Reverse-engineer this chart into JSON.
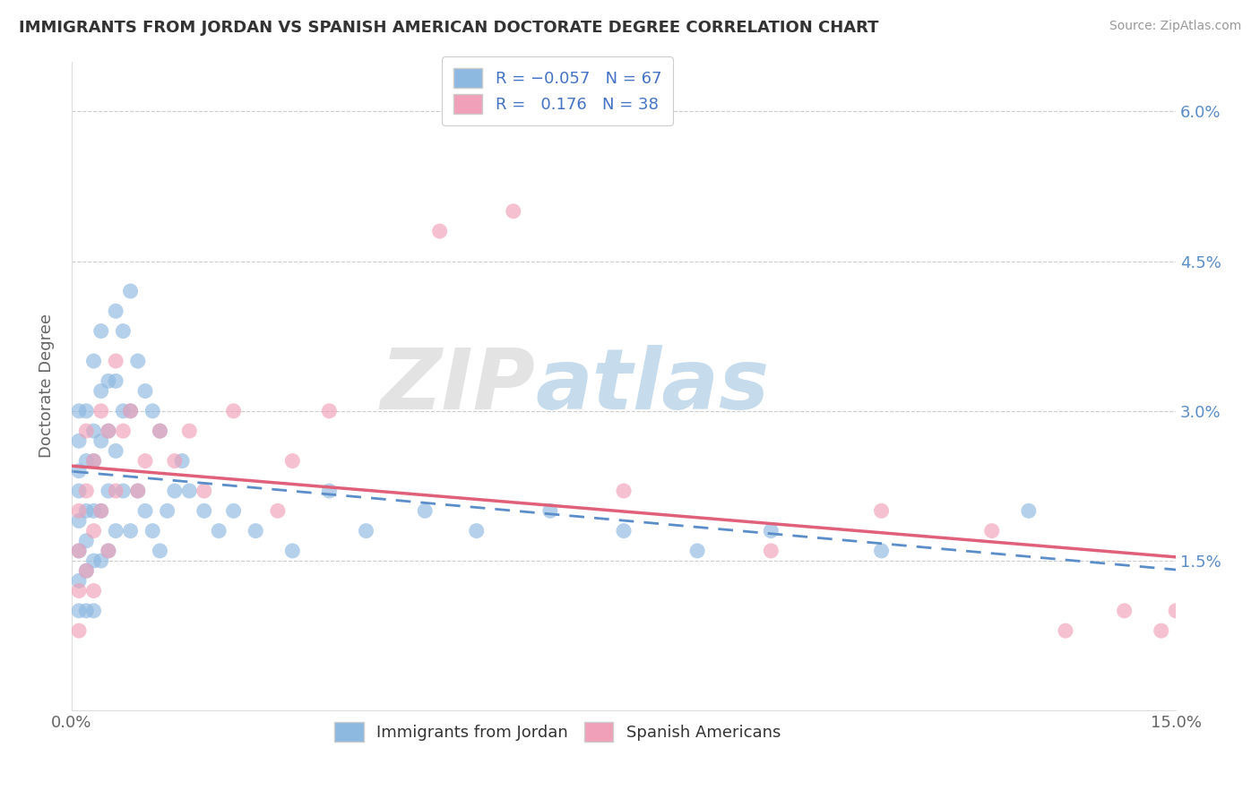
{
  "title": "IMMIGRANTS FROM JORDAN VS SPANISH AMERICAN DOCTORATE DEGREE CORRELATION CHART",
  "source": "Source: ZipAtlas.com",
  "ylabel": "Doctorate Degree",
  "xlim": [
    0.0,
    0.15
  ],
  "ylim": [
    0.0,
    0.065
  ],
  "blue_color": "#8DB8E0",
  "pink_color": "#F0A0B8",
  "blue_line_color": "#5B8DC8",
  "pink_line_color": "#E0607A",
  "watermark_zip": "ZIP",
  "watermark_atlas": "atlas",
  "background_color": "#FFFFFF",
  "grid_color": "#CCCCCC",
  "blue_scatter_x": [
    0.001,
    0.001,
    0.001,
    0.001,
    0.001,
    0.001,
    0.001,
    0.001,
    0.002,
    0.002,
    0.002,
    0.002,
    0.002,
    0.002,
    0.003,
    0.003,
    0.003,
    0.003,
    0.003,
    0.003,
    0.004,
    0.004,
    0.004,
    0.004,
    0.004,
    0.005,
    0.005,
    0.005,
    0.005,
    0.006,
    0.006,
    0.006,
    0.006,
    0.007,
    0.007,
    0.007,
    0.008,
    0.008,
    0.008,
    0.009,
    0.009,
    0.01,
    0.01,
    0.011,
    0.011,
    0.012,
    0.012,
    0.013,
    0.014,
    0.015,
    0.016,
    0.018,
    0.02,
    0.022,
    0.025,
    0.03,
    0.035,
    0.04,
    0.048,
    0.055,
    0.065,
    0.075,
    0.085,
    0.095,
    0.11,
    0.13
  ],
  "blue_scatter_y": [
    0.024,
    0.027,
    0.022,
    0.03,
    0.019,
    0.016,
    0.013,
    0.01,
    0.03,
    0.025,
    0.02,
    0.017,
    0.014,
    0.01,
    0.035,
    0.028,
    0.025,
    0.02,
    0.015,
    0.01,
    0.038,
    0.032,
    0.027,
    0.02,
    0.015,
    0.033,
    0.028,
    0.022,
    0.016,
    0.04,
    0.033,
    0.026,
    0.018,
    0.038,
    0.03,
    0.022,
    0.042,
    0.03,
    0.018,
    0.035,
    0.022,
    0.032,
    0.02,
    0.03,
    0.018,
    0.028,
    0.016,
    0.02,
    0.022,
    0.025,
    0.022,
    0.02,
    0.018,
    0.02,
    0.018,
    0.016,
    0.022,
    0.018,
    0.02,
    0.018,
    0.02,
    0.018,
    0.016,
    0.018,
    0.016,
    0.02
  ],
  "pink_scatter_x": [
    0.001,
    0.001,
    0.001,
    0.001,
    0.002,
    0.002,
    0.002,
    0.003,
    0.003,
    0.003,
    0.004,
    0.004,
    0.005,
    0.005,
    0.006,
    0.006,
    0.007,
    0.008,
    0.009,
    0.01,
    0.012,
    0.014,
    0.016,
    0.018,
    0.022,
    0.028,
    0.03,
    0.035,
    0.05,
    0.06,
    0.075,
    0.095,
    0.11,
    0.125,
    0.135,
    0.143,
    0.148,
    0.15
  ],
  "pink_scatter_y": [
    0.02,
    0.016,
    0.012,
    0.008,
    0.028,
    0.022,
    0.014,
    0.025,
    0.018,
    0.012,
    0.03,
    0.02,
    0.028,
    0.016,
    0.035,
    0.022,
    0.028,
    0.03,
    0.022,
    0.025,
    0.028,
    0.025,
    0.028,
    0.022,
    0.03,
    0.02,
    0.025,
    0.03,
    0.048,
    0.05,
    0.022,
    0.016,
    0.02,
    0.018,
    0.008,
    0.01,
    0.008,
    0.01
  ]
}
